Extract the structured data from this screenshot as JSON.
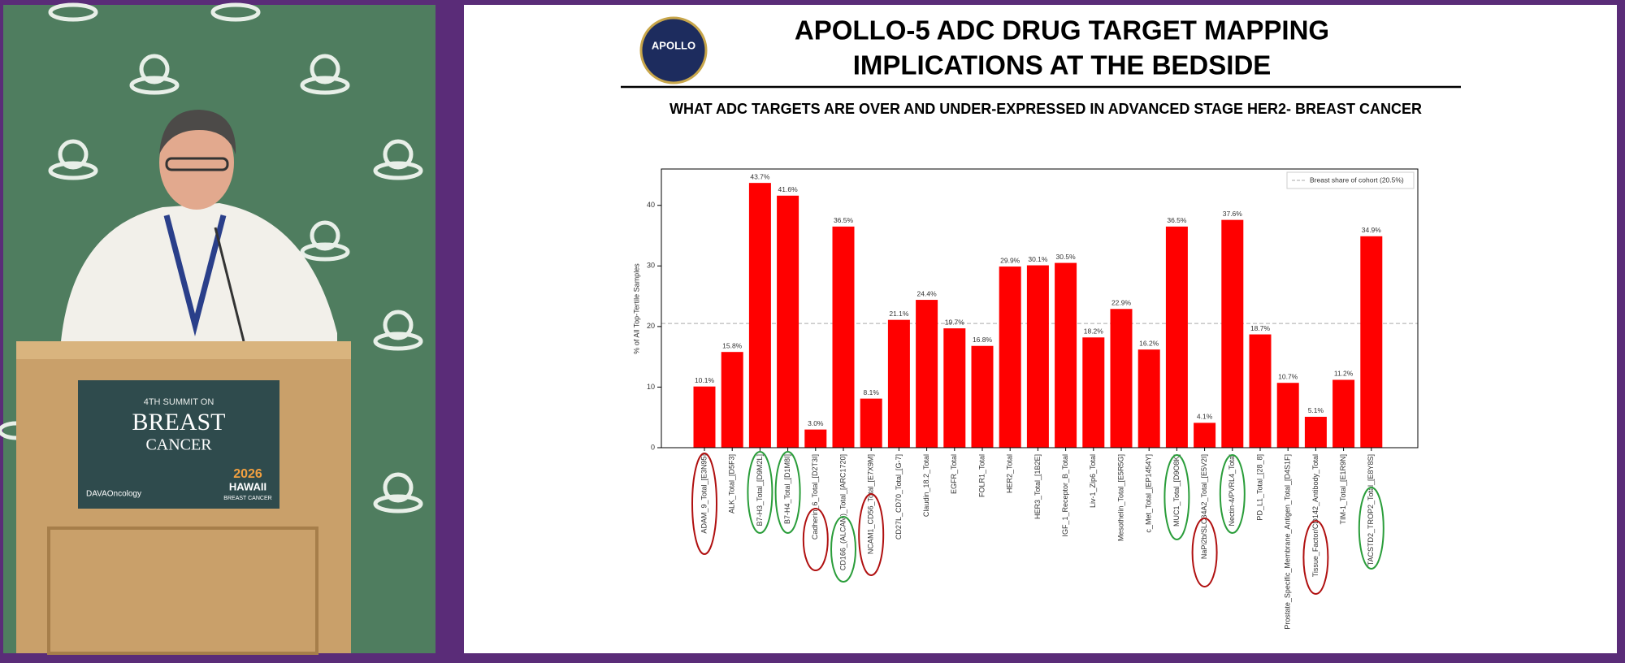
{
  "video": {
    "podium_line1": "4TH SUMMIT ON",
    "podium_line2": "BREAST",
    "podium_line3": "CANCER",
    "podium_brand": "DAVAOncology",
    "event_year": "2026",
    "event_place": "HAWAII",
    "event_sub": "BREAST CANCER"
  },
  "slide": {
    "logo": "APOLLO",
    "title_line1": "APOLLO-5 ADC DRUG TARGET MAPPING",
    "title_line2": "IMPLICATIONS AT THE BEDSIDE",
    "subtitle": "WHAT ADC TARGETS ARE OVER AND UNDER-EXPRESSED IN ADVANCED STAGE HER2- BREAST CANCER"
  },
  "chart_data": {
    "type": "bar",
    "y_label": "% of All Top-Tertile Samples",
    "categories": [
      "ADAM_9_Total_[E3N95]",
      "ALK_Total_[D5F3]",
      "B7-H3_Total_[D9M2L]",
      "B7-H4_Total_[D1M8I]",
      "Cadherin_6_Total_[D2T3I]",
      "CD166_(ALCAM)_Total_[ARC1720]",
      "NCAM1_CD56_Total_[E7X9M]",
      "CD27L_CD70_Total_[G-7]",
      "Claudin_18.2_Total",
      "EGFR_Total",
      "FOLR1_Total",
      "HER2_Total",
      "HER3_Total_[1B2E]",
      "IGF_1_Receptor_B_Total",
      "Liv-1_Zip6_Total",
      "Mesothelin_Total_[E5R5G]",
      "c_Met_Total_[EP1454Y]",
      "MUC1_Total_[D9O8K]",
      "NaPi2b/SLC34A2_Total_[E5V2I]",
      "Nectin-4/PVRL4_Total",
      "PD_L1_Total_[28_8]",
      "Prostate_Specific_Membrane_Antigen_Total_[D4S1F]",
      "Tissue_Factor/CD142_Antibody_Total",
      "TIM-1_Total_[E1R9N]",
      "TACSTD2_TROP2_Total_[E8Y8S]"
    ],
    "values": [
      10.1,
      15.8,
      43.7,
      41.6,
      3.0,
      36.5,
      8.1,
      21.1,
      24.4,
      19.7,
      16.8,
      29.9,
      30.1,
      30.5,
      18.2,
      22.9,
      16.2,
      36.5,
      4.1,
      37.6,
      18.7,
      10.7,
      5.1,
      11.2,
      34.9
    ],
    "value_labels": [
      "10.1%",
      "15.8%",
      "43.7%",
      "41.6%",
      "3.0%",
      "36.5%",
      "8.1%",
      "21.1%",
      "24.4%",
      "19.7%",
      "16.8%",
      "29.9%",
      "30.1%",
      "30.5%",
      "18.2%",
      "22.9%",
      "16.2%",
      "36.5%",
      "4.1%",
      "37.6%",
      "18.7%",
      "10.7%",
      "5.1%",
      "11.2%",
      "34.9%"
    ],
    "color": "#ff0000",
    "ylim": [
      0,
      46
    ],
    "yticks": [
      0,
      10,
      20,
      30,
      40
    ],
    "reference_line": {
      "value": 20.5,
      "label": "Breast share of cohort (20.5%)",
      "color": "#aaaaaa"
    },
    "legend": "upper right"
  }
}
